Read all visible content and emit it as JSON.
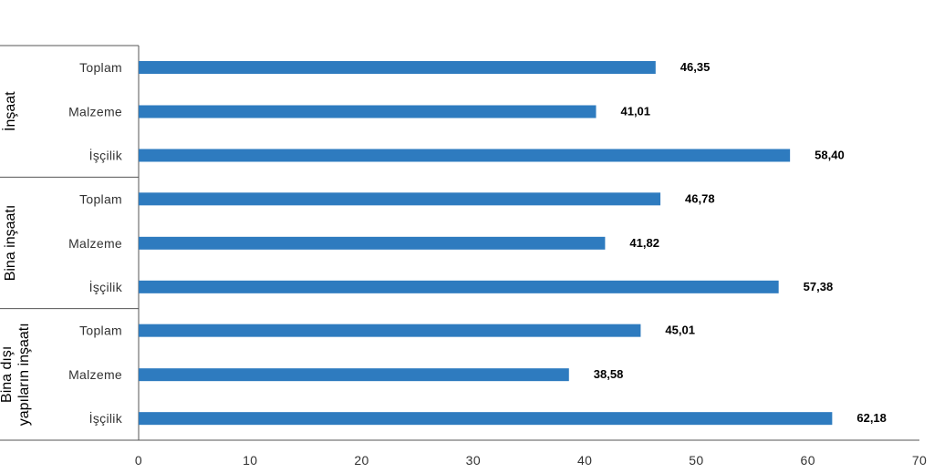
{
  "chart_data": {
    "type": "bar",
    "orientation": "horizontal",
    "title": "",
    "xlabel": "",
    "ylabel": "",
    "xlim": [
      0,
      70
    ],
    "x_ticks": [
      0,
      10,
      20,
      30,
      40,
      50,
      60,
      70
    ],
    "grid": false,
    "legend": "none",
    "bar_color": "#2e7bbf",
    "groups": [
      {
        "label": "İnşaat",
        "categories": [
          "Toplam",
          "Malzeme",
          "İşçilik"
        ],
        "values": [
          46.35,
          41.01,
          58.4
        ],
        "value_labels": [
          "46,35",
          "41,01",
          "58,40"
        ]
      },
      {
        "label": "Bina inşaatı",
        "categories": [
          "Toplam",
          "Malzeme",
          "İşçilik"
        ],
        "values": [
          46.78,
          41.82,
          57.38
        ],
        "value_labels": [
          "46,78",
          "41,82",
          "57,38"
        ]
      },
      {
        "label": "Bina dışı yapıların inşaatı",
        "label_lines": [
          "Bina dışı",
          "yapıların inşaatı"
        ],
        "categories": [
          "Toplam",
          "Malzeme",
          "İşçilik"
        ],
        "values": [
          45.01,
          38.58,
          62.18
        ],
        "value_labels": [
          "45,01",
          "38,58",
          "62,18"
        ]
      }
    ]
  }
}
